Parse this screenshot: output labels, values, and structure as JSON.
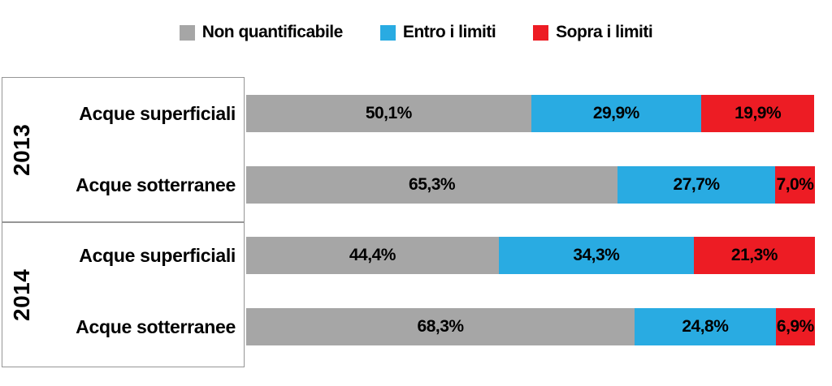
{
  "legend": {
    "items": [
      {
        "label": "Non quantificabile",
        "color": "#A6A6A6"
      },
      {
        "label": "Entro i limiti",
        "color": "#29ABE2"
      },
      {
        "label": "Sopra i limiti",
        "color": "#ED1C24"
      }
    ]
  },
  "chart_data": {
    "type": "bar",
    "orientation": "horizontal",
    "stacked": true,
    "unit": "percent",
    "x_range": [
      0,
      100
    ],
    "grid": false,
    "legend_position": "top",
    "series": [
      {
        "name": "Non quantificabile",
        "color": "#A6A6A6"
      },
      {
        "name": "Entro i limiti",
        "color": "#29ABE2"
      },
      {
        "name": "Sopra i limiti",
        "color": "#ED1C24"
      }
    ],
    "groups": [
      {
        "year": "2013",
        "rows": [
          {
            "category": "Acque superficiali",
            "values": [
              50.1,
              29.9,
              19.9
            ],
            "labels": [
              "50,1%",
              "29,9%",
              "19,9%"
            ]
          },
          {
            "category": "Acque sotterranee",
            "values": [
              65.3,
              27.7,
              7.0
            ],
            "labels": [
              "65,3%",
              "27,7%",
              "7,0%"
            ]
          }
        ]
      },
      {
        "year": "2014",
        "rows": [
          {
            "category": "Acque superficiali",
            "values": [
              44.4,
              34.3,
              21.3
            ],
            "labels": [
              "44,4%",
              "34,3%",
              "21,3%"
            ]
          },
          {
            "category": "Acque sotterranee",
            "values": [
              68.3,
              24.8,
              6.9
            ],
            "labels": [
              "68,3%",
              "24,8%",
              "6,9%"
            ]
          }
        ]
      }
    ]
  }
}
